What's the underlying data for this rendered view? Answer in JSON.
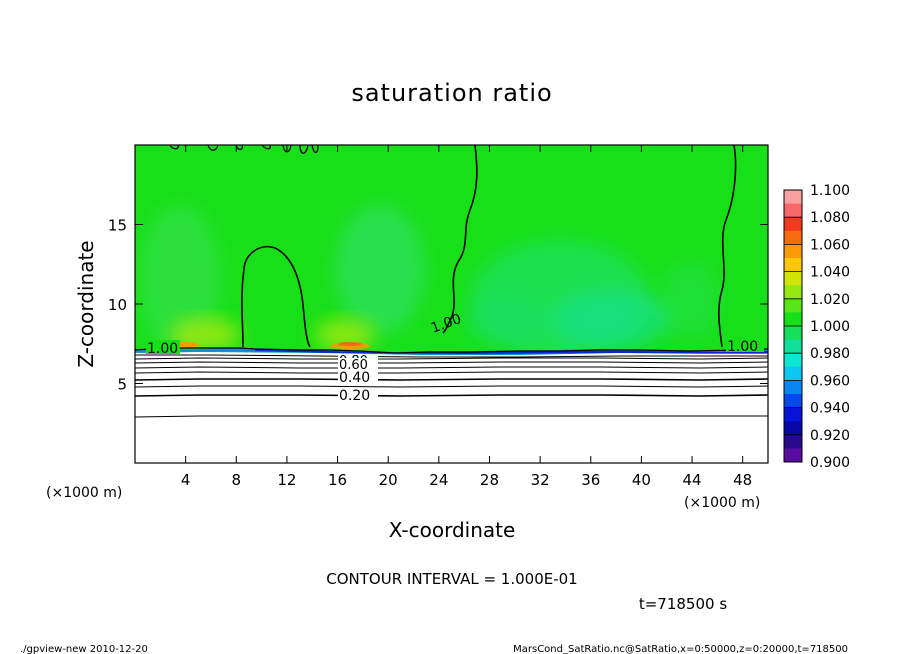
{
  "chart_data": {
    "type": "heatmap",
    "title": "saturation ratio",
    "xlabel": "X-coordinate",
    "ylabel": "Z-coordinate",
    "x_unit_left": "(×1000 m)",
    "x_unit_right": "(×1000 m)",
    "xlim": [
      0,
      50
    ],
    "ylim": [
      0,
      20
    ],
    "xticks": [
      "4",
      "8",
      "12",
      "16",
      "20",
      "24",
      "28",
      "32",
      "36",
      "40",
      "44",
      "48"
    ],
    "xtick_values": [
      4,
      8,
      12,
      16,
      20,
      24,
      28,
      32,
      36,
      40,
      44,
      48
    ],
    "yticks": [
      "5",
      "10",
      "15"
    ],
    "ytick_values": [
      5,
      10,
      15
    ],
    "contour_interval_text": "CONTOUR INTERVAL = 1.000E-01",
    "time_text": "t=718500 s",
    "contour_labels": [
      {
        "text": "1.00",
        "x": 2.0,
        "z": 7.1
      },
      {
        "text": "1.00",
        "x": 23.5,
        "z": 8.0
      },
      {
        "text": "1.00",
        "x": 48.0,
        "z": 7.2
      },
      {
        "text": "0.80",
        "x": 17.5,
        "z": 6.6
      },
      {
        "text": "0.60",
        "x": 17.5,
        "z": 6.0
      },
      {
        "text": "0.40",
        "x": 17.5,
        "z": 5.3
      },
      {
        "text": "0.20",
        "x": 17.5,
        "z": 4.2
      }
    ],
    "colorbar": {
      "ticks": [
        "1.100",
        "1.080",
        "1.060",
        "1.040",
        "1.020",
        "1.000",
        "0.980",
        "0.960",
        "0.940",
        "0.920",
        "0.900"
      ],
      "levels": [
        {
          "lo": 1.09,
          "color": "#f9a0a0"
        },
        {
          "lo": 1.08,
          "color": "#f86a6a"
        },
        {
          "lo": 1.07,
          "color": "#f43a1c"
        },
        {
          "lo": 1.06,
          "color": "#f86a10"
        },
        {
          "lo": 1.05,
          "color": "#fb9b08"
        },
        {
          "lo": 1.04,
          "color": "#fcc806"
        },
        {
          "lo": 1.03,
          "color": "#d2e406"
        },
        {
          "lo": 1.02,
          "color": "#96e812"
        },
        {
          "lo": 1.01,
          "color": "#58e61a"
        },
        {
          "lo": 1.0,
          "color": "#18e018"
        },
        {
          "lo": 0.99,
          "color": "#16e05a"
        },
        {
          "lo": 0.98,
          "color": "#12e09a"
        },
        {
          "lo": 0.97,
          "color": "#0ee6d2"
        },
        {
          "lo": 0.96,
          "color": "#0ac6f0"
        },
        {
          "lo": 0.95,
          "color": "#0a86f0"
        },
        {
          "lo": 0.94,
          "color": "#0848f0"
        },
        {
          "lo": 0.93,
          "color": "#0614d8"
        },
        {
          "lo": 0.92,
          "color": "#0808a8"
        },
        {
          "lo": 0.91,
          "color": "#2a0a8c"
        },
        {
          "lo": 0.9,
          "color": "#5a0ca0"
        }
      ]
    },
    "grid": false
  },
  "footer": {
    "left": "./gpview-new   2010-12-20",
    "right": "MarsCond_SatRatio.nc@SatRatio,x=0:50000,z=0:20000,t=718500"
  }
}
